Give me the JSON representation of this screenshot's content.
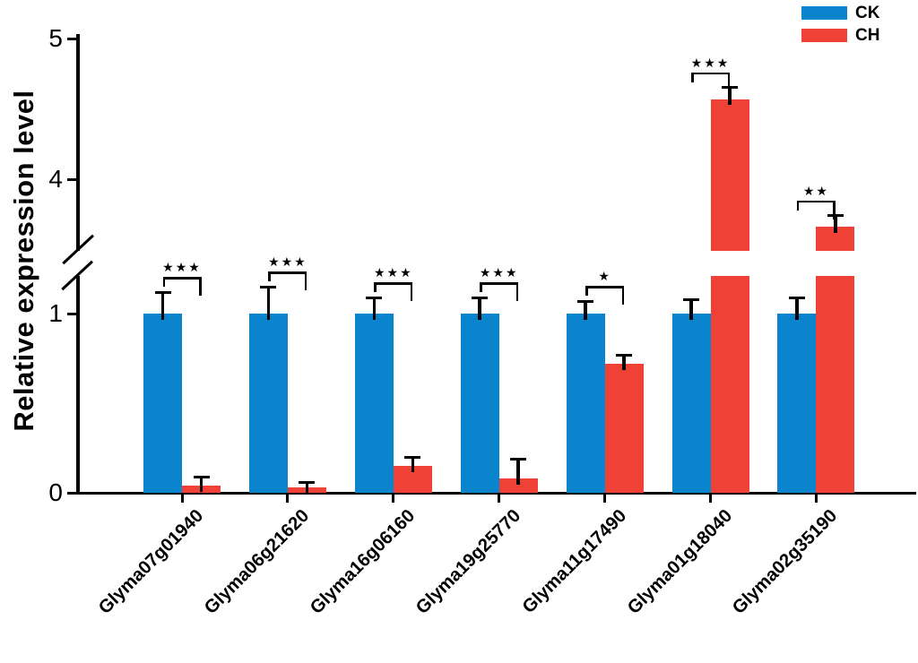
{
  "chart_data": {
    "type": "bar",
    "title": "",
    "ylabel": "Relative expression level",
    "xlabel": "",
    "categories": [
      "Glyma07g01940",
      "Glyma06g21620",
      "Glyma16g06160",
      "Glyma19g25770",
      "Glyma11g17490",
      "Glyma01g18040",
      "Glyma02g35190"
    ],
    "series": [
      {
        "name": "CK",
        "color": "#0a85cd",
        "values": [
          1.0,
          1.0,
          1.0,
          1.0,
          1.0,
          1.0,
          1.0
        ],
        "errors": [
          0.12,
          0.15,
          0.09,
          0.09,
          0.07,
          0.08,
          0.09
        ]
      },
      {
        "name": "CH",
        "color": "#ef4136",
        "values": [
          0.04,
          0.03,
          0.15,
          0.08,
          0.72,
          4.57,
          3.66
        ],
        "errors": [
          0.05,
          0.03,
          0.05,
          0.11,
          0.05,
          0.08,
          0.08
        ]
      }
    ],
    "significance": [
      "***",
      "***",
      "***",
      "***",
      "*",
      "***",
      "**"
    ],
    "y_axis": {
      "lower_ticks": [
        0,
        1
      ],
      "upper_ticks": [
        4,
        5
      ],
      "axis_break": true,
      "break_between": [
        1.2,
        3.5
      ]
    },
    "grid": false,
    "legend_position": "top-right",
    "legend": [
      "CK",
      "CH"
    ]
  }
}
